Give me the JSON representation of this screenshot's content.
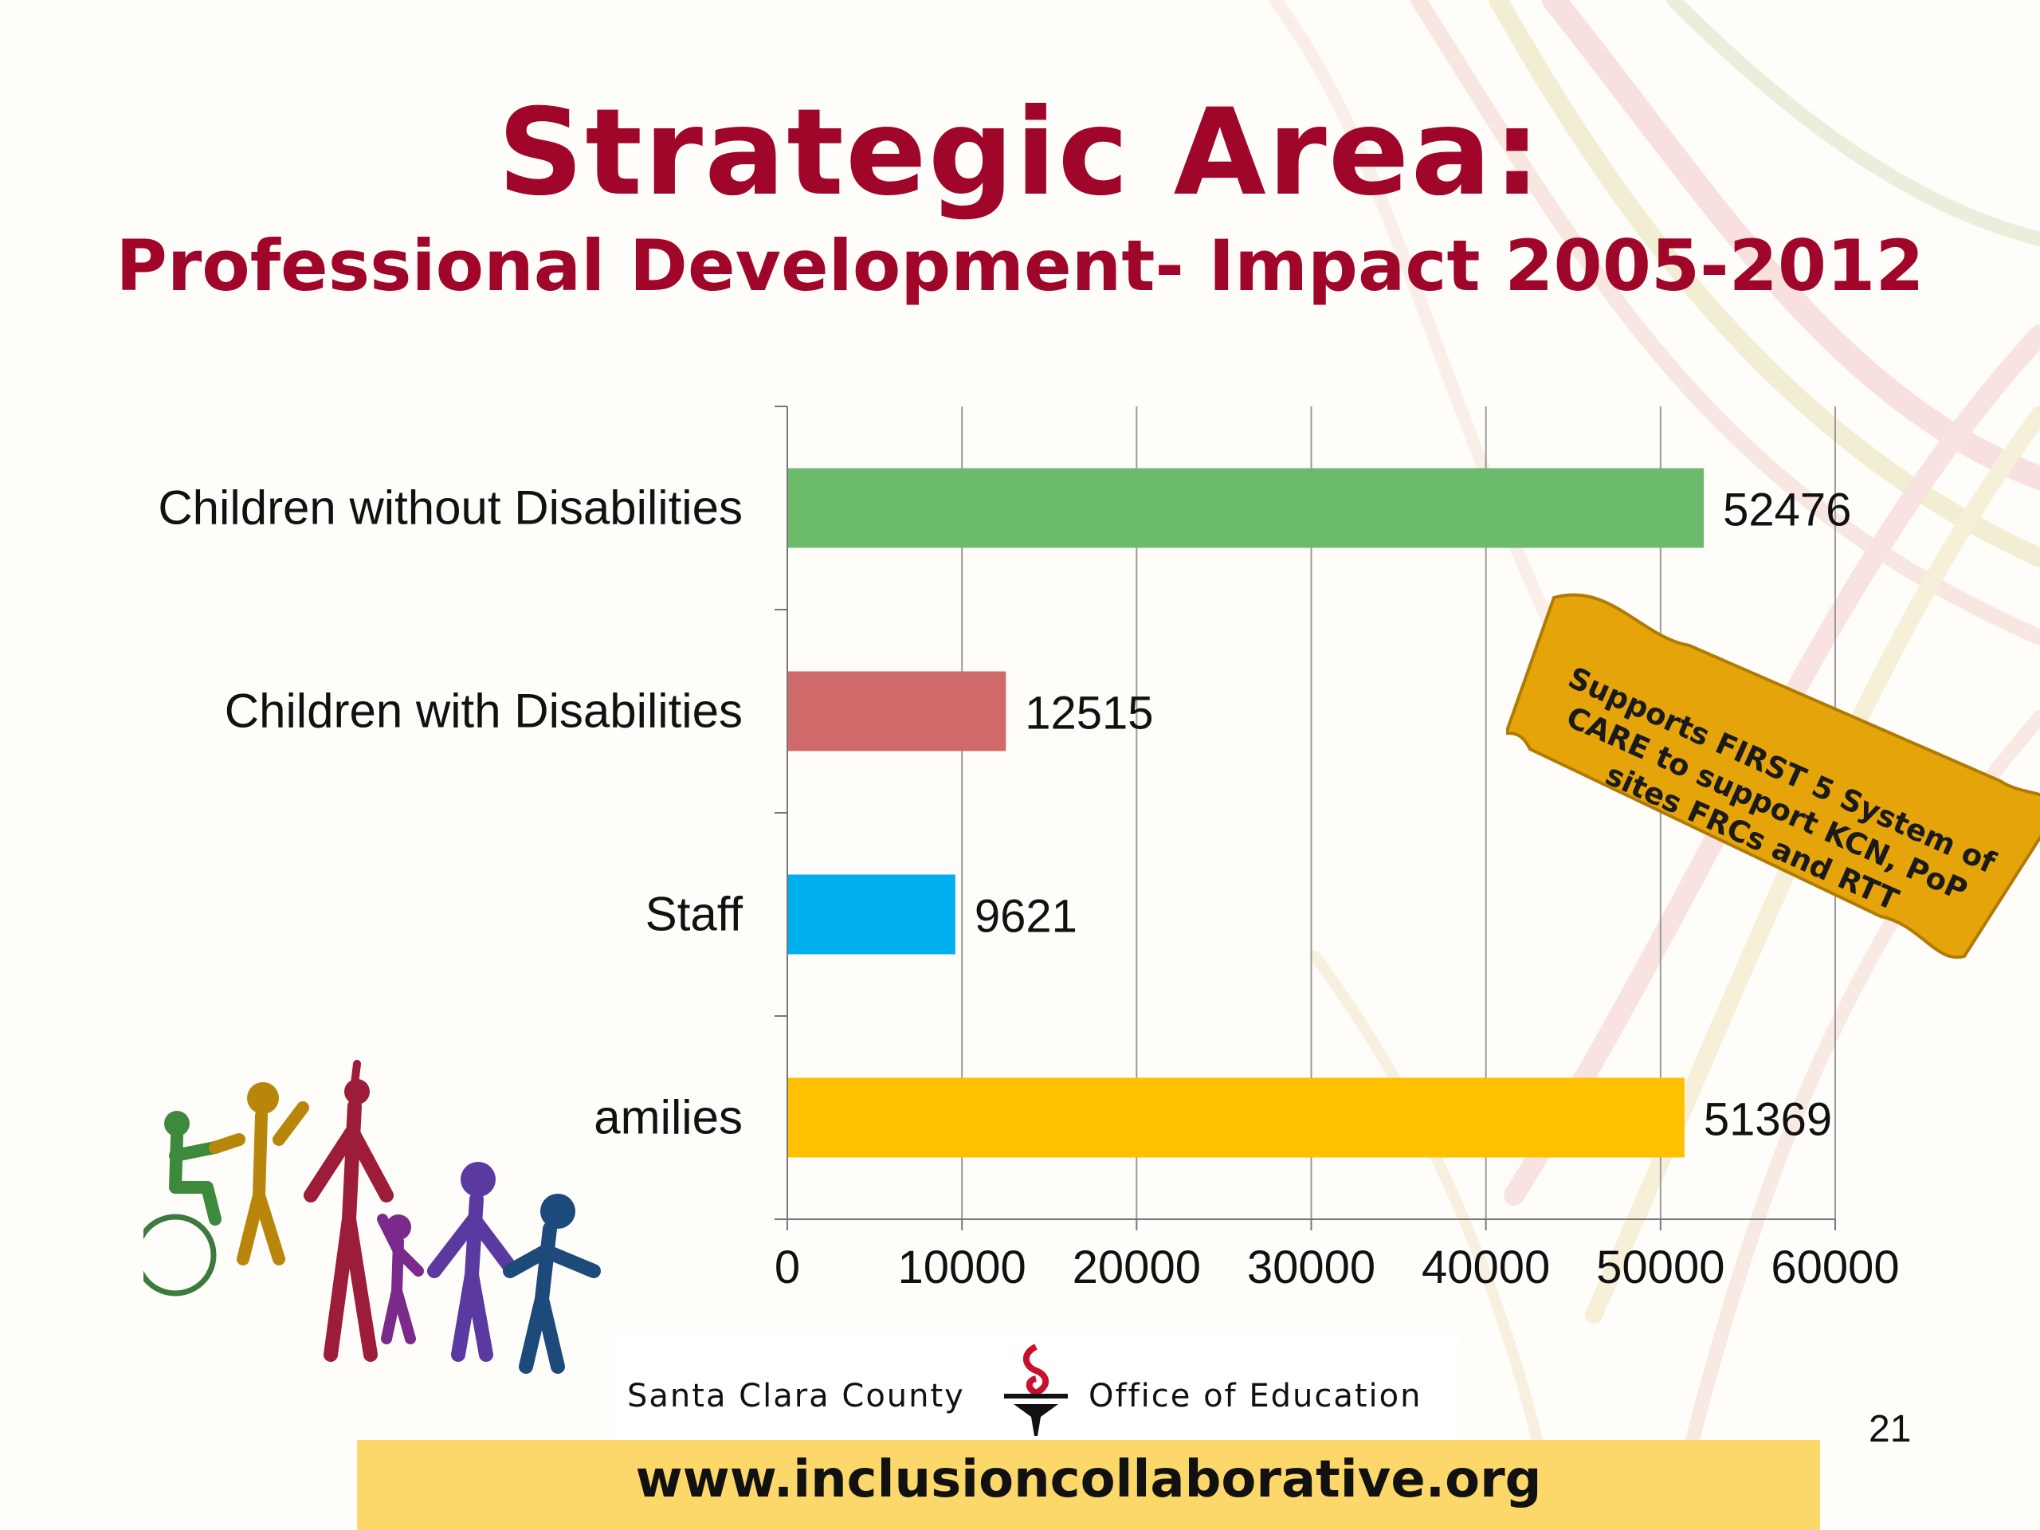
{
  "slide": {
    "title": "Strategic Area:",
    "subtitle": "Professional Development- Impact 2005-2012",
    "page_number": "21",
    "footer_url": "www.inclusioncollaborative.org",
    "logo": {
      "left_text": "Santa Clara County",
      "right_text": "Office of Education"
    },
    "callout_text": "Supports FIRST 5 System of CARE to support KCN, PoP sites FRCs and RTT",
    "colors": {
      "title": "#a0062a",
      "footer_bar": "#fcd86a",
      "callout_fill": "#e5a50a"
    }
  },
  "chart_data": {
    "type": "bar",
    "orientation": "horizontal",
    "categories": [
      "Children without Disabilities",
      "Children with Disabilities",
      "Staff",
      "amilies"
    ],
    "values": [
      52476,
      12515,
      9621,
      51369
    ],
    "colors": [
      "#6cba6c",
      "#d06a6a",
      "#00b0ee",
      "#ffc000"
    ],
    "xlim": [
      0,
      60000
    ],
    "xticks": [
      "0",
      "10000",
      "20000",
      "30000",
      "40000",
      "50000",
      "60000"
    ],
    "grid": true,
    "legend": "none",
    "data_labels": [
      "52476",
      "12515",
      "9621",
      "51369"
    ]
  }
}
